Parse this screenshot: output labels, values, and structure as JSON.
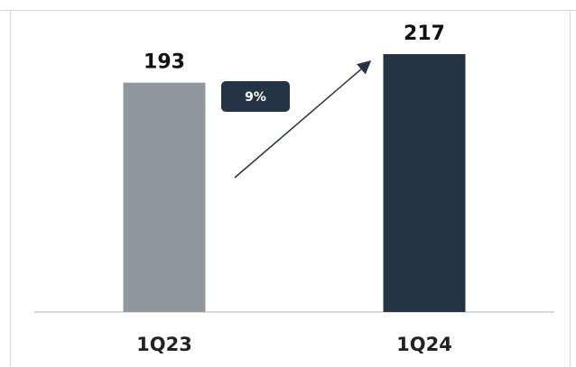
{
  "chart_data": {
    "type": "bar",
    "categories": [
      "1Q23",
      "1Q24"
    ],
    "values": [
      193,
      217
    ],
    "value_labels": [
      "193",
      "217"
    ],
    "colors": [
      "#8f979f",
      "#243444"
    ],
    "title": "",
    "xlabel": "",
    "ylabel": "",
    "grid": false,
    "legend": "none",
    "annotation": {
      "text": "9%",
      "color": "#243444"
    }
  }
}
